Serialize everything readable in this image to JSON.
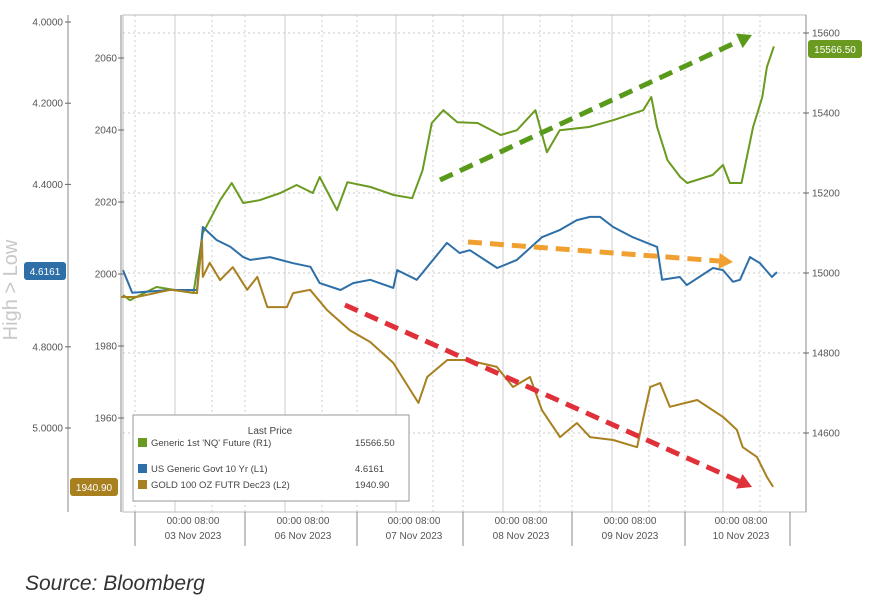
{
  "chart_data": {
    "type": "line",
    "grid": true,
    "legend_placement": "bottom-left",
    "legend": {
      "title": "Last Price",
      "entries": [
        {
          "name": "Generic 1st 'NQ' Future  (R1)",
          "value": "15566.50",
          "color": "#6a9a1f"
        },
        {
          "name": "US Generic Govt 10 Yr  (L1)",
          "value": "4.6161",
          "color": "#2e6fa8"
        },
        {
          "name": "GOLD 100 OZ FUTR Dec23  (L2)",
          "value": "1940.90",
          "color": "#a8801f"
        }
      ]
    },
    "axes": {
      "left_outer": {
        "title": "High > Low",
        "inverted": true,
        "range": [
          4.0,
          5.0
        ],
        "tick_labels": [
          "4.0000",
          "4.2000",
          "4.4000",
          "4.8000",
          "5.0000"
        ],
        "tick_values": [
          4.0,
          4.2,
          4.4,
          4.8,
          5.0
        ],
        "last_value_badge": "4.6161"
      },
      "left_inner": {
        "range": [
          1940,
          2065
        ],
        "tick_labels": [
          "2060",
          "2040",
          "2020",
          "2000",
          "1980",
          "1960"
        ],
        "tick_values": [
          2060,
          2040,
          2020,
          2000,
          1980,
          1960
        ],
        "last_value_badge": "1940.90"
      },
      "right": {
        "range": [
          14400,
          15650
        ],
        "tick_labels": [
          "15600",
          "15400",
          "15200",
          "15000",
          "14800",
          "14600"
        ],
        "tick_values": [
          15600,
          15400,
          15200,
          15000,
          14800,
          14600
        ],
        "last_value_badge": "15566.50"
      },
      "x": {
        "time_labels": "00:00  08:00",
        "day_labels": [
          "03 Nov 2023",
          "06 Nov 2023",
          "07 Nov 2023",
          "08 Nov 2023",
          "09 Nov 2023",
          "10 Nov 2023"
        ]
      }
    },
    "series": [
      {
        "name": "Generic 1st 'NQ' Future  (R1)",
        "axis": "right",
        "color": "#6a9a1f",
        "points": [
          [
            "2023-11-02 12:45",
            14945
          ],
          [
            "2023-11-02 14:15",
            14932
          ],
          [
            "2023-11-02 20:00",
            14965
          ],
          [
            "2023-11-03 04:00",
            14950
          ],
          [
            "2023-11-03 06:00",
            15100
          ],
          [
            "2023-11-03 07:30",
            15132
          ],
          [
            "2023-11-03 09:45",
            15182
          ],
          [
            "2023-11-03 12:15",
            15225
          ],
          [
            "2023-11-03 14:45",
            15175
          ],
          [
            "2023-11-05 18:30",
            15182
          ],
          [
            "2023-11-05 23:00",
            15200
          ],
          [
            "2023-11-06 02:30",
            15220
          ],
          [
            "2023-11-06 06:00",
            15200
          ],
          [
            "2023-11-06 07:30",
            15240
          ],
          [
            "2023-11-06 11:15",
            15157
          ],
          [
            "2023-11-06 13:30",
            15227
          ],
          [
            "2023-11-06 18:30",
            15215
          ],
          [
            "2023-11-06 23:30",
            15195
          ],
          [
            "2023-11-07 03:30",
            15187
          ],
          [
            "2023-11-07 05:45",
            15257
          ],
          [
            "2023-11-07 07:45",
            15375
          ],
          [
            "2023-11-07 10:15",
            15407
          ],
          [
            "2023-11-07 13:15",
            15377
          ],
          [
            "2023-11-07 18:30",
            15375
          ],
          [
            "2023-11-07 23:30",
            15345
          ],
          [
            "2023-11-08 03:00",
            15357
          ],
          [
            "2023-11-08 07:00",
            15407
          ],
          [
            "2023-11-08 09:30",
            15302
          ],
          [
            "2023-11-08 12:15",
            15357
          ],
          [
            "2023-11-08 19:00",
            15365
          ],
          [
            "2023-11-09 00:15",
            15382
          ],
          [
            "2023-11-09 06:45",
            15407
          ],
          [
            "2023-11-09 08:30",
            15440
          ],
          [
            "2023-11-09 09:45",
            15365
          ],
          [
            "2023-11-09 12:00",
            15282
          ],
          [
            "2023-11-09 14:45",
            15240
          ],
          [
            "2023-11-09 16:15",
            15225
          ],
          [
            "2023-11-09 21:45",
            15245
          ],
          [
            "2023-11-10 00:00",
            15270
          ],
          [
            "2023-11-10 01:30",
            15225
          ],
          [
            "2023-11-10 04:00",
            15225
          ],
          [
            "2023-11-10 06:30",
            15365
          ],
          [
            "2023-11-10 08:30",
            15440
          ],
          [
            "2023-11-10 09:30",
            15515
          ],
          [
            "2023-11-10 11:00",
            15566.5
          ]
        ]
      },
      {
        "name": "US Generic Govt 10 Yr  (L1)",
        "axis": "left_outer",
        "color": "#2e6fa8",
        "points": [
          [
            "2023-11-02 12:45",
            4.611
          ],
          [
            "2023-11-02 14:45",
            4.667
          ],
          [
            "2023-11-02 23:00",
            4.66
          ],
          [
            "2023-11-03 04:45",
            4.66
          ],
          [
            "2023-11-03 06:00",
            4.505
          ],
          [
            "2023-11-03 09:00",
            4.537
          ],
          [
            "2023-11-03 12:00",
            4.554
          ],
          [
            "2023-11-03 14:45",
            4.579
          ],
          [
            "2023-11-05 16:30",
            4.586
          ],
          [
            "2023-11-05 20:45",
            4.579
          ],
          [
            "2023-11-06 01:45",
            4.594
          ],
          [
            "2023-11-06 05:30",
            4.603
          ],
          [
            "2023-11-06 07:30",
            4.643
          ],
          [
            "2023-11-06 12:00",
            4.66
          ],
          [
            "2023-11-06 14:45",
            4.643
          ],
          [
            "2023-11-06 18:25",
            4.635
          ],
          [
            "2023-11-06 23:25",
            4.655
          ],
          [
            "2023-11-07 00:15",
            4.611
          ],
          [
            "2023-11-07 04:30",
            4.635
          ],
          [
            "2023-11-07 11:00",
            4.544
          ],
          [
            "2023-11-07 13:45",
            4.569
          ],
          [
            "2023-11-07 16:50",
            4.562
          ],
          [
            "2023-11-07 22:45",
            4.606
          ],
          [
            "2023-11-08 03:00",
            4.586
          ],
          [
            "2023-11-08 08:25",
            4.53
          ],
          [
            "2023-11-08 12:20",
            4.512
          ],
          [
            "2023-11-08 16:25",
            4.488
          ],
          [
            "2023-11-08 19:15",
            4.48
          ],
          [
            "2023-11-08 21:25",
            4.48
          ],
          [
            "2023-11-09 00:15",
            4.505
          ],
          [
            "2023-11-09 04:30",
            4.53
          ],
          [
            "2023-11-09 09:45",
            4.554
          ],
          [
            "2023-11-09 10:50",
            4.635
          ],
          [
            "2023-11-09 14:40",
            4.628
          ],
          [
            "2023-11-09 16:10",
            4.648
          ],
          [
            "2023-11-09 21:50",
            4.606
          ],
          [
            "2023-11-10 00:00",
            4.611
          ],
          [
            "2023-11-10 02:10",
            4.64
          ],
          [
            "2023-11-10 03:40",
            4.635
          ],
          [
            "2023-11-10 05:50",
            4.579
          ],
          [
            "2023-11-10 08:00",
            4.594
          ],
          [
            "2023-11-10 10:35",
            4.628
          ],
          [
            "2023-11-10 11:40",
            4.6161
          ]
        ]
      },
      {
        "name": "GOLD 100 OZ FUTR Dec23  (L2)",
        "axis": "left_inner",
        "color": "#a8801f",
        "points": [
          [
            "2023-11-02 12:20",
            1993.6
          ],
          [
            "2023-11-02 15:45",
            1993.6
          ],
          [
            "2023-11-02 23:00",
            1995.6
          ],
          [
            "2023-11-03 04:45",
            1994.7
          ],
          [
            "2023-11-03 05:50",
            2009.4
          ],
          [
            "2023-11-03 06:00",
            1999.2
          ],
          [
            "2023-11-03 07:30",
            2003.1
          ],
          [
            "2023-11-03 09:45",
            1998.3
          ],
          [
            "2023-11-03 12:30",
            2001.9
          ],
          [
            "2023-11-05 15:50",
            1995.6
          ],
          [
            "2023-11-05 18:00",
            1999.2
          ],
          [
            "2023-11-05 20:10",
            1990.8
          ],
          [
            "2023-11-06 00:25",
            1990.8
          ],
          [
            "2023-11-06 01:45",
            1994.7
          ],
          [
            "2023-11-06 05:25",
            1995.6
          ],
          [
            "2023-11-06 09:05",
            1990.0
          ],
          [
            "2023-11-06 14:00",
            1984.4
          ],
          [
            "2023-11-06 18:25",
            1981.1
          ],
          [
            "2023-11-06 23:25",
            1975.3
          ],
          [
            "2023-11-07 04:50",
            1964.2
          ],
          [
            "2023-11-07 06:45",
            1971.4
          ],
          [
            "2023-11-07 11:05",
            1976.1
          ],
          [
            "2023-11-07 16:15",
            1976.1
          ],
          [
            "2023-11-07 22:40",
            1974.2
          ],
          [
            "2023-11-08 02:10",
            1968.6
          ],
          [
            "2023-11-08 05:50",
            1971.4
          ],
          [
            "2023-11-08 08:25",
            1962.2
          ],
          [
            "2023-11-08 12:20",
            1954.7
          ],
          [
            "2023-11-08 16:25",
            1958.6
          ],
          [
            "2023-11-08 19:15",
            1954.7
          ],
          [
            "2023-11-09 00:15",
            1953.9
          ],
          [
            "2023-11-09 05:25",
            1951.9
          ],
          [
            "2023-11-09 06:40",
            1959.4
          ],
          [
            "2023-11-09 08:15",
            1968.6
          ],
          [
            "2023-11-09 10:25",
            1969.7
          ],
          [
            "2023-11-09 12:30",
            1963.1
          ],
          [
            "2023-11-09 18:25",
            1965.0
          ],
          [
            "2023-11-10 00:00",
            1960.3
          ],
          [
            "2023-11-10 03:00",
            1956.7
          ],
          [
            "2023-11-10 04:15",
            1951.9
          ],
          [
            "2023-11-10 07:20",
            1949.2
          ],
          [
            "2023-11-10 09:30",
            1943.6
          ],
          [
            "2023-11-10 10:50",
            1940.9
          ]
        ]
      }
    ],
    "annotations": [
      {
        "type": "dashed-arrow",
        "color": "#5a9a1a",
        "direction": "up"
      },
      {
        "type": "dashed-arrow",
        "color": "#f0a030",
        "direction": "flat-down"
      },
      {
        "type": "dashed-arrow",
        "color": "#e0303a",
        "direction": "down"
      }
    ]
  },
  "source": "Source: Bloomberg"
}
